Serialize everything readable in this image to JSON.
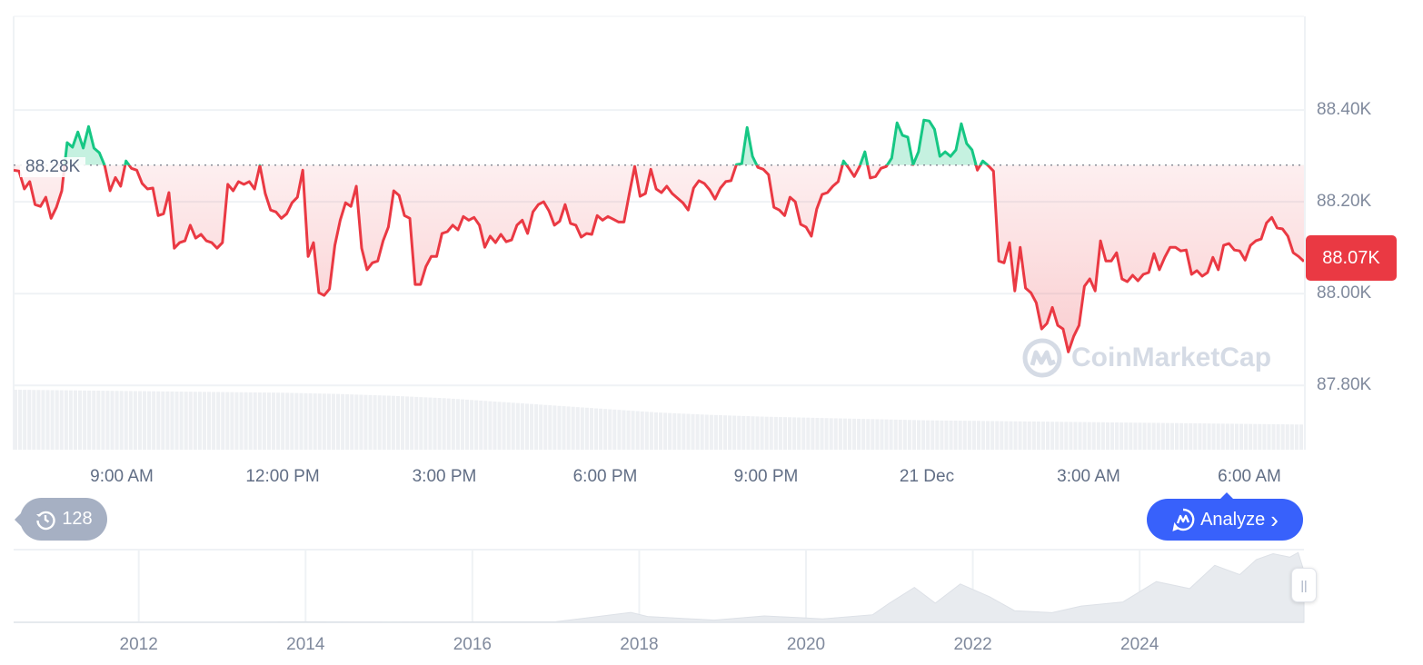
{
  "chart_data": {
    "type": "line",
    "title": "",
    "xlabel": "",
    "ylabel": "",
    "x_range": [
      "07:00",
      "07:00"
    ],
    "x_ticks": [
      "9:00 AM",
      "12:00 PM",
      "3:00 PM",
      "6:00 PM",
      "9:00 PM",
      "21 Dec",
      "3:00 AM",
      "6:00 AM"
    ],
    "y_ticks": [
      "88.40K",
      "88.20K",
      "88.00K",
      "87.80K"
    ],
    "y_tick_values": [
      88400,
      88200,
      88000,
      87800
    ],
    "ylim": [
      87660,
      88604
    ],
    "grid": "horizontal",
    "baseline_value": 88280,
    "baseline_label": "88.28K",
    "current_price_label": "88.07K",
    "colors": {
      "up": "#16C784",
      "down": "#EA3943",
      "price_tag": "#EA3943"
    },
    "series": [
      {
        "values": [
          88269,
          88267,
          88228,
          88244,
          88194,
          88190,
          88210,
          88164,
          88188,
          88224,
          88329,
          88319,
          88352,
          88317,
          88364,
          88317,
          88307,
          88279,
          88224,
          88253,
          88234,
          88289,
          88273,
          88269,
          88240,
          88228,
          88230,
          88170,
          88174,
          88220,
          88099,
          88111,
          88115,
          88149,
          88121,
          88129,
          88115,
          88111,
          88099,
          88111,
          88238,
          88224,
          88244,
          88238,
          88244,
          88228,
          88279,
          88218,
          88182,
          88178,
          88164,
          88174,
          88198,
          88210,
          88269,
          88081,
          88111,
          88002,
          87996,
          88010,
          88105,
          88160,
          88198,
          88190,
          88234,
          88099,
          88052,
          88067,
          88071,
          88115,
          88145,
          88224,
          88214,
          88170,
          88164,
          88020,
          88020,
          88059,
          88081,
          88081,
          88131,
          88135,
          88149,
          88139,
          88168,
          88160,
          88166,
          88149,
          88101,
          88125,
          88111,
          88129,
          88113,
          88117,
          88149,
          88160,
          88131,
          88178,
          88194,
          88200,
          88180,
          88149,
          88158,
          88194,
          88153,
          88149,
          88123,
          88131,
          88129,
          88170,
          88160,
          88168,
          88162,
          88156,
          88156,
          88218,
          88277,
          88212,
          88218,
          88271,
          88228,
          88220,
          88234,
          88218,
          88208,
          88198,
          88182,
          88230,
          88246,
          88240,
          88226,
          88206,
          88230,
          88244,
          88246,
          88281,
          88283,
          88362,
          88299,
          88275,
          88271,
          88259,
          88188,
          88182,
          88170,
          88210,
          88200,
          88151,
          88145,
          88125,
          88184,
          88216,
          88220,
          88234,
          88244,
          88289,
          88273,
          88255,
          88277,
          88309,
          88252,
          88255,
          88273,
          88277,
          88295,
          88372,
          88345,
          88341,
          88281,
          88309,
          88378,
          88376,
          88358,
          88299,
          88309,
          88299,
          88313,
          88370,
          88327,
          88313,
          88269,
          88289,
          88279,
          88267,
          88071,
          88067,
          88111,
          88006,
          88101,
          88012,
          88002,
          87980,
          87923,
          87935,
          87970,
          87931,
          87923,
          87873,
          87907,
          87931,
          88016,
          88032,
          88006,
          88115,
          88071,
          88071,
          88089,
          88032,
          88026,
          88040,
          88028,
          88042,
          88046,
          88087,
          88052,
          88079,
          88101,
          88101,
          88093,
          88095,
          88042,
          88050,
          88038,
          88046,
          88079,
          88052,
          88105,
          88109,
          88095,
          88093,
          88073,
          88105,
          88115,
          88119,
          88154,
          88166,
          88143,
          88141,
          88125,
          88089,
          88081,
          88070
        ]
      }
    ],
    "volume_relative": [
      1.0,
      0.99,
      0.98,
      0.97,
      0.96,
      0.95,
      0.93,
      0.9,
      0.86,
      0.8,
      0.74,
      0.68,
      0.62,
      0.58,
      0.55,
      0.53,
      0.51,
      0.49,
      0.48,
      0.47,
      0.46,
      0.45,
      0.44,
      0.43,
      0.42
    ],
    "navigator": {
      "x_ticks": [
        "2012",
        "2014",
        "2016",
        "2018",
        "2020",
        "2022",
        "2024"
      ],
      "x_tick_years": [
        2012,
        2014,
        2016,
        2018,
        2020,
        2022,
        2024
      ],
      "x_range": [
        2010.5,
        2025.97
      ],
      "ylim": [
        0,
        125000
      ],
      "points": [
        [
          2010.5,
          0
        ],
        [
          2013.0,
          100
        ],
        [
          2013.9,
          1000
        ],
        [
          2015.0,
          300
        ],
        [
          2017.0,
          1000
        ],
        [
          2017.9,
          17000
        ],
        [
          2018.1,
          10000
        ],
        [
          2018.9,
          3700
        ],
        [
          2019.5,
          11000
        ],
        [
          2020.2,
          6000
        ],
        [
          2020.8,
          13000
        ],
        [
          2021.0,
          33000
        ],
        [
          2021.3,
          60000
        ],
        [
          2021.55,
          33000
        ],
        [
          2021.85,
          66000
        ],
        [
          2022.2,
          44000
        ],
        [
          2022.5,
          20000
        ],
        [
          2022.95,
          16500
        ],
        [
          2023.3,
          28000
        ],
        [
          2023.8,
          35000
        ],
        [
          2024.2,
          70000
        ],
        [
          2024.6,
          58000
        ],
        [
          2024.9,
          98000
        ],
        [
          2025.2,
          82000
        ],
        [
          2025.4,
          108000
        ],
        [
          2025.6,
          118000
        ],
        [
          2025.8,
          112000
        ],
        [
          2025.9,
          120000
        ],
        [
          2025.97,
          88000
        ]
      ]
    }
  },
  "badges": {
    "history_count": "128",
    "history_icon": "history-clock-icon"
  },
  "analyze": {
    "label": "Analyze",
    "icon": "cmc-chat-icon",
    "chevron": "›"
  },
  "watermark": "CoinMarketCap",
  "navigator_handle": "||"
}
